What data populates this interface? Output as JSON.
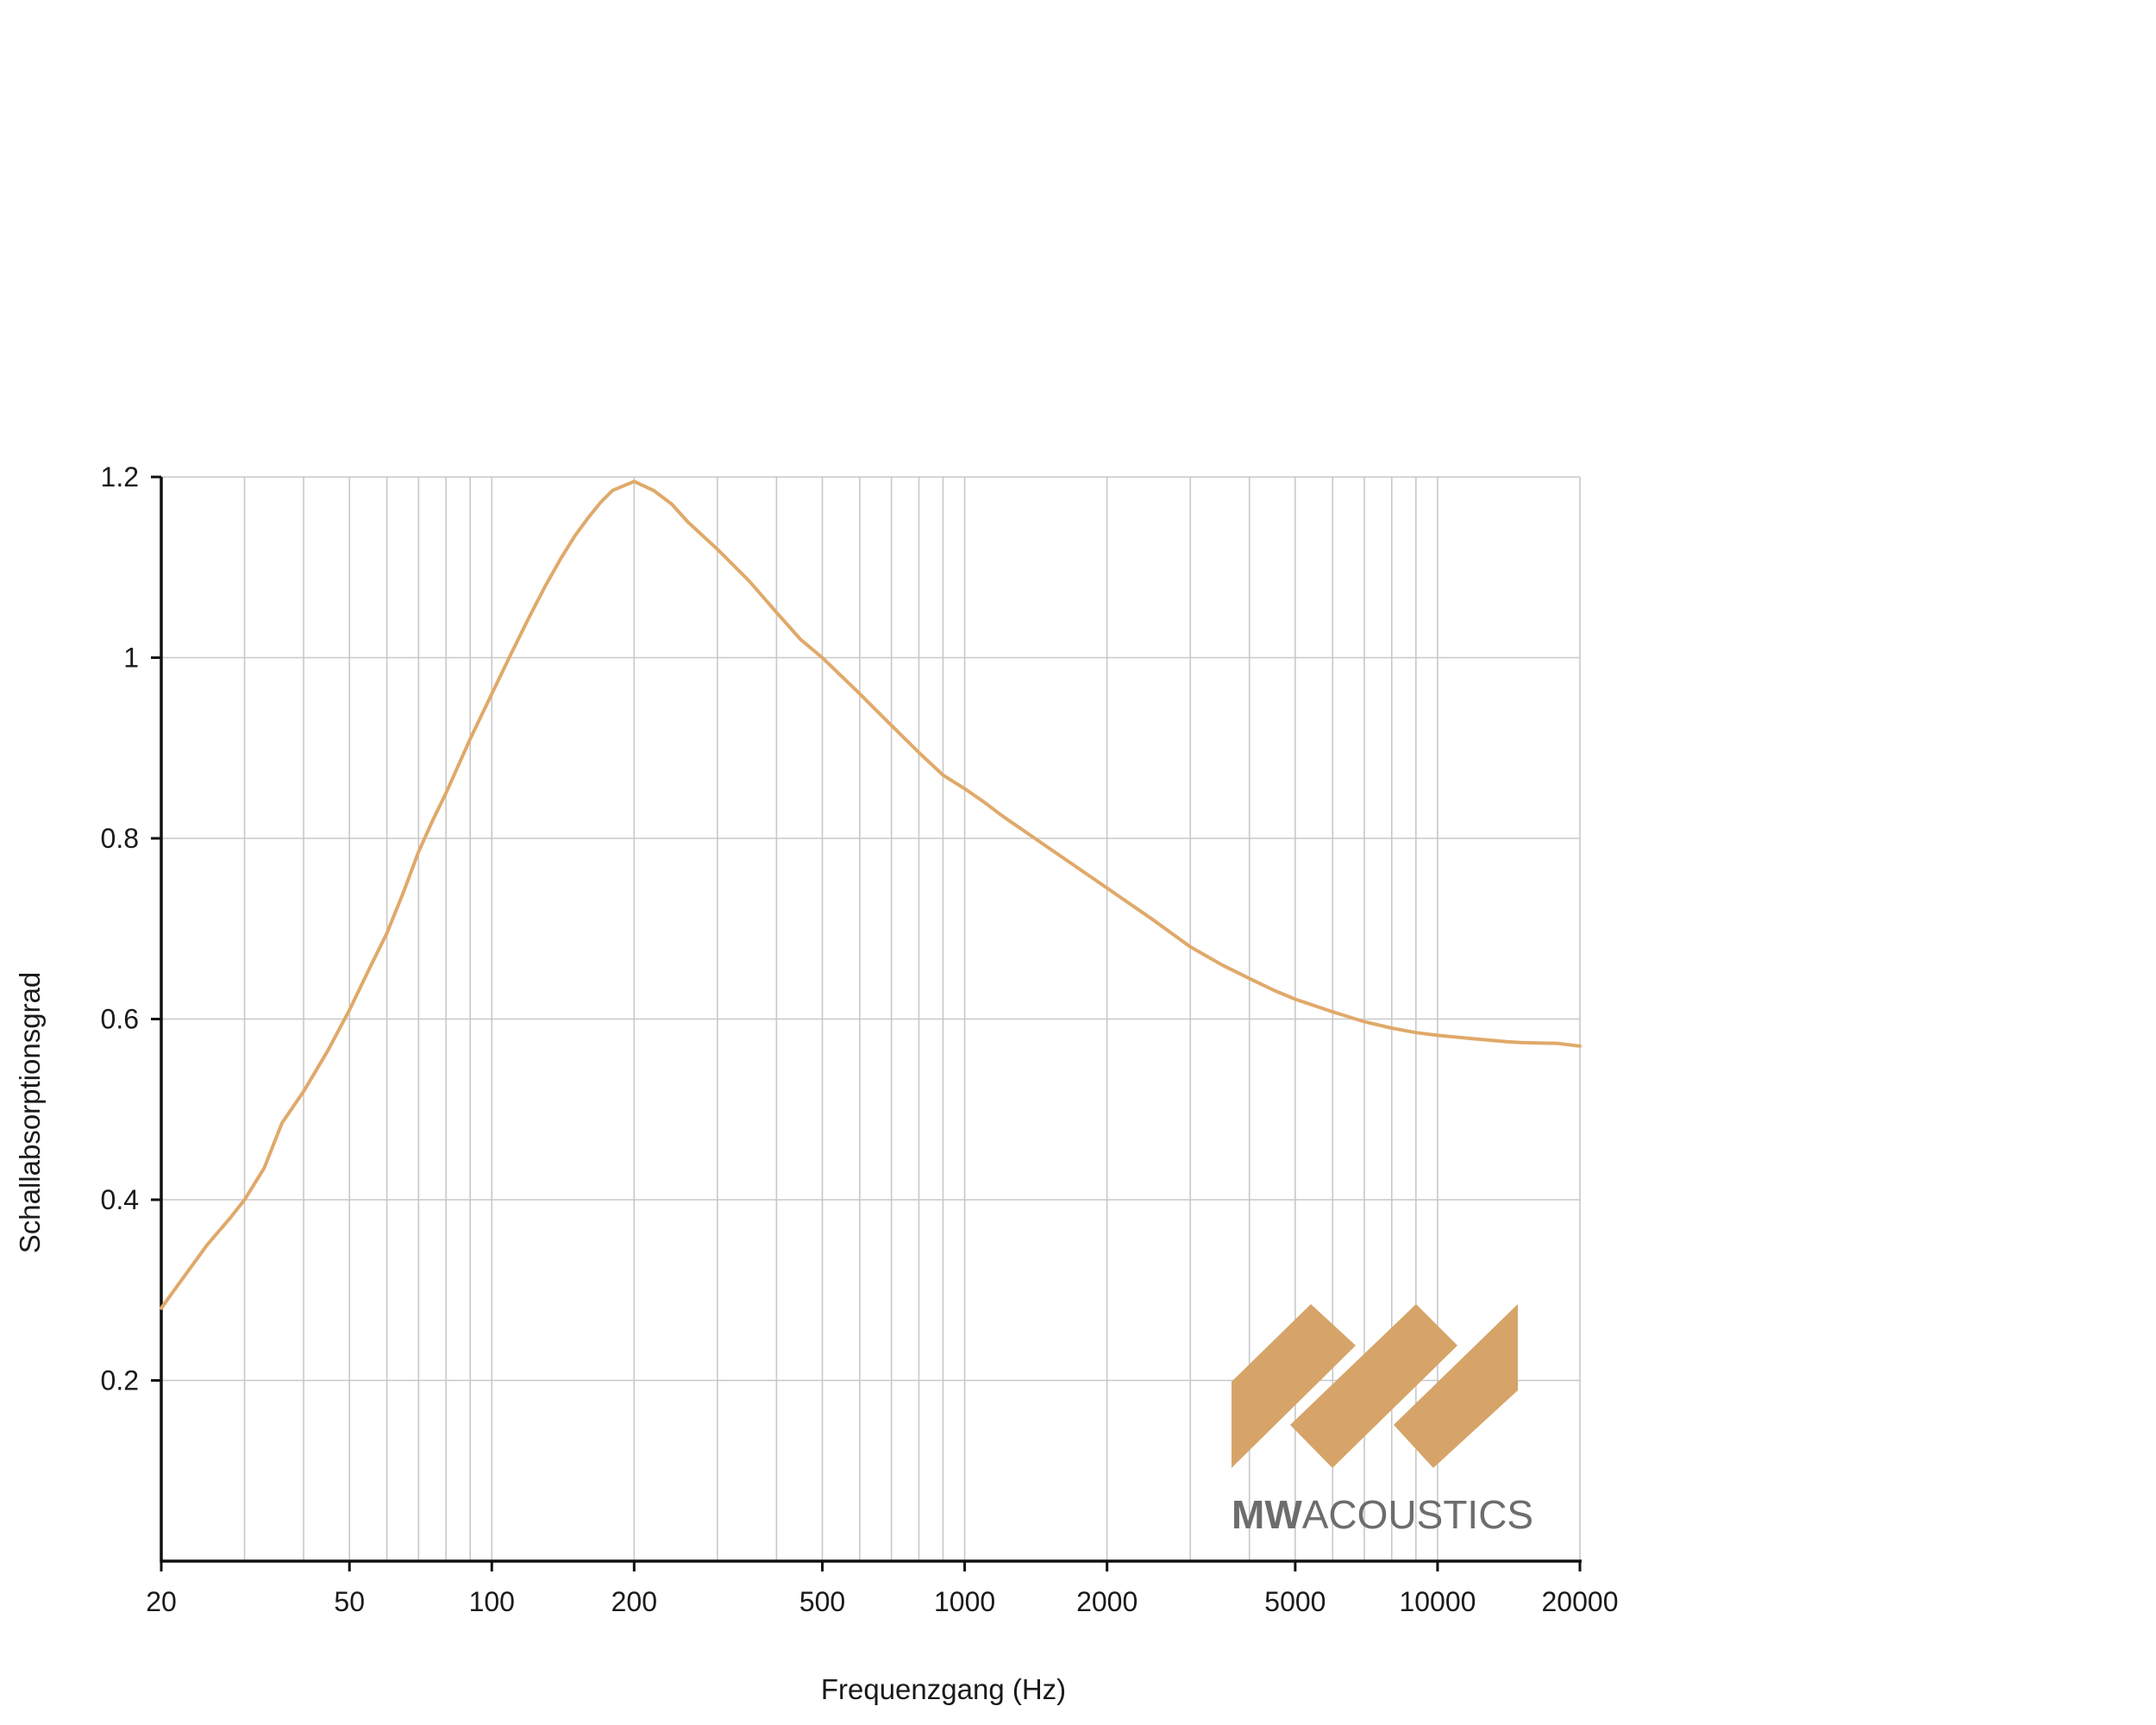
{
  "chart_data": {
    "type": "line",
    "title": "",
    "xlabel": "Frequenzgang (Hz)",
    "ylabel": "Schallabsorptionsgrad",
    "xscale": "log",
    "xlim": [
      20,
      20000
    ],
    "ylim": [
      0,
      1.2
    ],
    "grid": true,
    "legend": "none",
    "x_ticks": [
      20,
      50,
      100,
      200,
      500,
      1000,
      2000,
      5000,
      10000,
      20000
    ],
    "x_tick_labels": [
      "20",
      "50",
      "100",
      "200",
      "500",
      "1000",
      "2000",
      "5000",
      "10000",
      "20000"
    ],
    "y_ticks": [
      0.2,
      0.4,
      0.6,
      0.8,
      1.0,
      1.2
    ],
    "y_tick_labels": [
      "0.2",
      "0.4",
      "0.6",
      "0.8",
      "1",
      "1.2"
    ],
    "line_color": "#e0a96a",
    "series": [
      {
        "x": [
          20,
          22,
          25,
          28,
          30,
          33,
          36,
          40,
          45,
          50,
          55,
          60,
          65,
          70,
          75,
          80,
          90,
          100,
          110,
          120,
          130,
          140,
          150,
          160,
          170,
          180,
          200,
          220,
          240,
          260,
          300,
          350,
          400,
          450,
          500,
          600,
          700,
          800,
          900,
          1000,
          1100,
          1200,
          1500,
          2000,
          2500,
          3000,
          3500,
          4000,
          4500,
          5000,
          6000,
          7000,
          8000,
          9000,
          10000,
          12000,
          14000,
          15000,
          18000,
          20000
        ],
        "y": [
          0.28,
          0.31,
          0.35,
          0.38,
          0.4,
          0.435,
          0.485,
          0.52,
          0.565,
          0.61,
          0.655,
          0.695,
          0.74,
          0.785,
          0.82,
          0.85,
          0.91,
          0.96,
          1.005,
          1.045,
          1.08,
          1.11,
          1.135,
          1.155,
          1.172,
          1.185,
          1.195,
          1.185,
          1.17,
          1.15,
          1.12,
          1.085,
          1.05,
          1.02,
          1.0,
          0.96,
          0.925,
          0.895,
          0.87,
          0.855,
          0.84,
          0.825,
          0.79,
          0.745,
          0.71,
          0.68,
          0.66,
          0.645,
          0.632,
          0.622,
          0.608,
          0.597,
          0.59,
          0.585,
          0.582,
          0.578,
          0.575,
          0.574,
          0.573,
          0.57
        ]
      }
    ]
  },
  "logo": {
    "text_bold": "MW",
    "text_light": "ACOUSTICS",
    "color_shape": "#d6a468",
    "color_text": "#6d6d6d"
  }
}
